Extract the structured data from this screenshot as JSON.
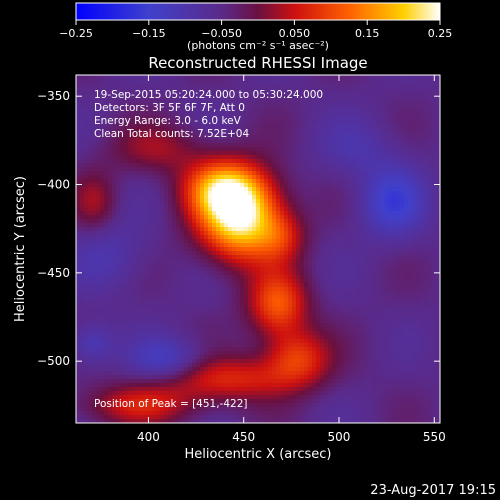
{
  "chart_data": {
    "type": "heatmap",
    "title": "Reconstructed RHESSI Image",
    "xlabel": "Heliocentric X (arcsec)",
    "ylabel": "Heliocentric Y (arcsec)",
    "xlim": [
      362,
      553
    ],
    "ylim": [
      -535,
      -338
    ],
    "x_ticks": [
      400,
      450,
      500,
      550
    ],
    "y_ticks": [
      -350,
      -400,
      -450,
      -500
    ],
    "x_tick_labels": [
      "400",
      "450",
      "500",
      "550"
    ],
    "y_tick_labels": [
      "−350",
      "−400",
      "−450",
      "−500"
    ],
    "colorbar": {
      "range": [
        -0.25,
        0.25
      ],
      "ticks": [
        -0.25,
        -0.15,
        -0.05,
        0.05,
        0.15,
        0.25
      ],
      "tick_labels": [
        "−0.25",
        "−0.15",
        "−0.050",
        "0.050",
        "0.15",
        "0.25"
      ],
      "unit_label": "(photons cm⁻² s⁻¹ asec⁻²)"
    },
    "annotations": [
      "19-Sep-2015 05:20:24.000 to 05:30:24.000",
      "Detectors: 3F 5F 6F 7F, Att 0",
      "Energy Range: 3.0 - 6.0 keV",
      "Clean     Total counts: 7.52E+04"
    ],
    "peak_label": "Position of Peak = [451,-422]",
    "peak": [
      451,
      -422
    ],
    "background_level": -0.05,
    "sources": [
      {
        "x": 448,
        "y": -418,
        "sx": 15,
        "sy": 17,
        "amp": 0.3
      },
      {
        "x": 438,
        "y": -402,
        "sx": 14,
        "sy": 11,
        "amp": 0.16
      },
      {
        "x": 470,
        "y": -430,
        "sx": 9,
        "sy": 10,
        "amp": 0.08
      },
      {
        "x": 468,
        "y": -468,
        "sx": 11,
        "sy": 13,
        "amp": 0.16
      },
      {
        "x": 478,
        "y": -498,
        "sx": 12,
        "sy": 11,
        "amp": 0.13
      },
      {
        "x": 440,
        "y": -510,
        "sx": 26,
        "sy": 9,
        "amp": 0.12
      },
      {
        "x": 395,
        "y": -525,
        "sx": 22,
        "sy": 8,
        "amp": 0.1
      },
      {
        "x": 372,
        "y": -410,
        "sx": 8,
        "sy": 12,
        "amp": 0.07
      },
      {
        "x": 405,
        "y": -380,
        "sx": 18,
        "sy": 10,
        "amp": 0.07
      },
      {
        "x": 528,
        "y": -410,
        "sx": 12,
        "sy": 14,
        "amp": -0.1
      },
      {
        "x": 410,
        "y": -500,
        "sx": 14,
        "sy": 9,
        "amp": -0.09
      },
      {
        "x": 370,
        "y": -490,
        "sx": 8,
        "sy": 8,
        "amp": -0.07
      },
      {
        "x": 510,
        "y": -380,
        "sx": 15,
        "sy": 12,
        "amp": -0.04
      },
      {
        "x": 380,
        "y": -440,
        "sx": 14,
        "sy": 14,
        "amp": -0.05
      }
    ]
  },
  "footer": {
    "timestamp": "23-Aug-2017 19:15"
  }
}
